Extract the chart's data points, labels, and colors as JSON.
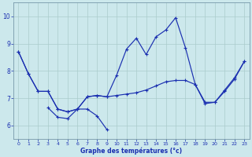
{
  "xlabel": "Graphe des températures (°c)",
  "background_color": "#cce8ec",
  "grid_color": "#aacccc",
  "line_color": "#1a2fb0",
  "ylim": [
    5.5,
    10.5
  ],
  "yticks": [
    6,
    7,
    8,
    9,
    10
  ],
  "xlim": [
    -0.5,
    23.5
  ],
  "xticks": [
    0,
    1,
    2,
    3,
    4,
    5,
    6,
    7,
    8,
    9,
    10,
    11,
    12,
    13,
    14,
    15,
    16,
    17,
    18,
    19,
    20,
    21,
    22,
    23
  ],
  "line1_y": [
    8.7,
    7.9,
    7.25,
    7.25,
    6.6,
    6.5,
    6.6,
    7.05,
    7.1,
    7.05,
    7.85,
    8.8,
    9.2,
    8.6,
    9.25,
    9.5,
    9.95,
    8.85,
    7.5,
    6.8,
    6.85,
    7.25,
    7.7,
    8.35
  ],
  "line2_y": [
    8.7,
    7.9,
    7.25,
    7.25,
    6.6,
    6.5,
    6.6,
    7.05,
    7.1,
    7.05,
    7.1,
    7.15,
    7.2,
    7.3,
    7.45,
    7.6,
    7.65,
    7.65,
    7.5,
    6.85,
    6.85,
    7.3,
    7.75,
    8.35
  ],
  "line3_y": [
    null,
    null,
    null,
    6.65,
    6.3,
    6.25,
    6.6,
    6.6,
    6.35,
    5.85,
    null,
    null,
    null,
    null,
    null,
    null,
    null,
    null,
    null,
    null,
    null,
    null,
    null,
    null
  ]
}
